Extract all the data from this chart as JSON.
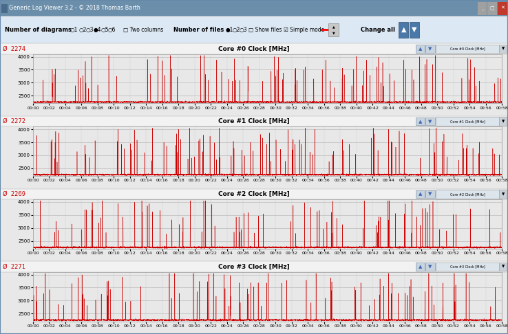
{
  "title_bar": "Generic Log Viewer 3.2 - © 2018 Thomas Barth",
  "panels": [
    {
      "title": "Core #0 Clock [MHz]",
      "value_label": "2274",
      "tag": "Core #0 Clock [MHz]"
    },
    {
      "title": "Core #1 Clock [MHz]",
      "value_label": "2272",
      "tag": "Core #1 Clock [MHz]"
    },
    {
      "title": "Core #2 Clock [MHz]",
      "value_label": "2269",
      "tag": "Core #2 Clock [MHz]"
    },
    {
      "title": "Core #3 Clock [MHz]",
      "value_label": "2271",
      "tag": "Core #3 Clock [MHz]"
    }
  ],
  "x_ticks": [
    "00:00",
    "00:02",
    "00:04",
    "00:06",
    "00:08",
    "00:10",
    "00:12",
    "00:14",
    "00:16",
    "00:18",
    "00:20",
    "00:22",
    "00:24",
    "00:26",
    "00:28",
    "00:30",
    "00:32",
    "00:34",
    "00:36",
    "00:38",
    "00:40",
    "00:42",
    "00:44",
    "00:46",
    "00:48",
    "00:50",
    "00:52",
    "00:54",
    "00:56",
    "00:58"
  ],
  "ylim": [
    2200,
    4100
  ],
  "yticks": [
    2500,
    3000,
    3500,
    4000
  ],
  "line_color": "#cc0000",
  "grid_color": "#bbbbbb",
  "window_bg": "#c0cdd8",
  "title_bar_bg": "#6b8fab",
  "toolbar_bg": "#dce8f4",
  "panel_header_bg": "#f0f0f0",
  "plot_bg_top": "#f0f0f0",
  "plot_bg_bot": "#d8d8d8",
  "seed": 42,
  "n_points": 7080,
  "duration_seconds": 3540,
  "spike_interval_seconds": 30
}
